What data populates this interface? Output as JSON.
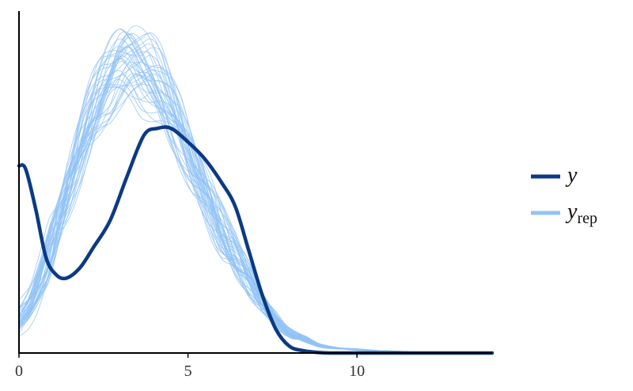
{
  "chart_data": {
    "type": "line",
    "title": "",
    "xlabel": "",
    "ylabel": "",
    "xlim": [
      0,
      14
    ],
    "ylim": [
      0,
      1
    ],
    "x_ticks": [
      "0",
      "5",
      "10"
    ],
    "x_tick_values": [
      0,
      5,
      10
    ],
    "y_axis_ticks_shown": false,
    "grid": false,
    "legend_position": "right",
    "legend": [
      {
        "label": "y",
        "subscript": "",
        "color": "#0b3a84"
      },
      {
        "label": "y",
        "subscript": "rep",
        "color": "#92c3f5"
      }
    ],
    "series": [
      {
        "name": "y",
        "color": "#0b3a84",
        "x": [
          0,
          0.2,
          0.5,
          0.8,
          1.1,
          1.4,
          1.8,
          2.2,
          2.7,
          3.2,
          3.7,
          4.1,
          4.5,
          5.0,
          5.5,
          6.0,
          6.4,
          6.8,
          7.2,
          7.6,
          8.0,
          8.4,
          8.8,
          9.2,
          10.0,
          11.0,
          12.0,
          14.0
        ],
        "y": [
          0.55,
          0.54,
          0.42,
          0.28,
          0.23,
          0.22,
          0.25,
          0.31,
          0.39,
          0.52,
          0.64,
          0.66,
          0.66,
          0.62,
          0.57,
          0.5,
          0.43,
          0.3,
          0.17,
          0.07,
          0.02,
          0.007,
          0.002,
          0.0,
          0.0,
          0.0,
          0.0,
          0.0
        ]
      },
      {
        "name": "y_rep",
        "color": "#92c3f5",
        "x": [
          0,
          0.3,
          0.6,
          0.9,
          1.2,
          1.5,
          1.8,
          2.1,
          2.4,
          2.7,
          3.0,
          3.3,
          3.6,
          3.9,
          4.2,
          4.5,
          4.8,
          5.1,
          5.4,
          5.7,
          6.0,
          6.4,
          6.8,
          7.2,
          7.6,
          8.0,
          8.5,
          9.0,
          10.0,
          11.0,
          12.0,
          13.0,
          14.0
        ],
        "y": [
          0.1,
          0.14,
          0.21,
          0.3,
          0.4,
          0.5,
          0.6,
          0.69,
          0.76,
          0.81,
          0.85,
          0.86,
          0.84,
          0.82,
          0.78,
          0.72,
          0.65,
          0.57,
          0.5,
          0.43,
          0.36,
          0.29,
          0.22,
          0.15,
          0.1,
          0.06,
          0.04,
          0.02,
          0.01,
          0.005,
          0.002,
          0.001,
          0.0
        ]
      }
    ]
  }
}
